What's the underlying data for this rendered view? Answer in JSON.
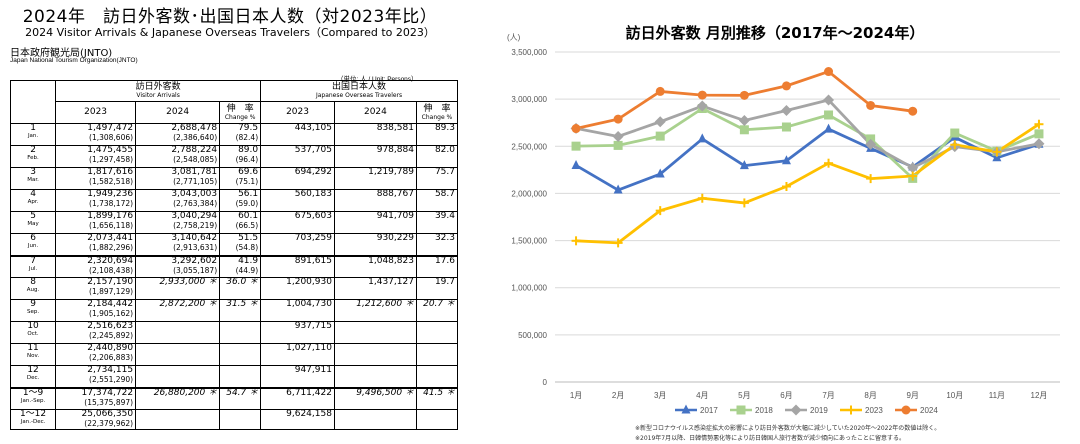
{
  "table": {
    "title": "2024年　訪日外客数･出国日本人数（対2023年比）",
    "subtitle": "2024  Visitor Arrivals & Japanese Overseas Travelers（Compared to 2023）",
    "org": "日本政府観光局(JNTO)",
    "org_en": "Japan National Tourism Organization(JNTO)",
    "unit": "（単位: 人  /  Unit: Persons）",
    "header": {
      "visitor": "訪日外客数",
      "visitor_en": "Visitor  Arrivals",
      "traveler": "出国日本人数",
      "traveler_en": "Japanese  Overseas  Travelers",
      "y2023": "2023",
      "y2024": "2024",
      "change": "伸　率",
      "change_en": "Change %"
    },
    "rows": [
      {
        "m": "1",
        "me": "Jan.",
        "v23": "1,497,472",
        "v23p": "(1,308,606)",
        "v24": "2,688,478",
        "v24p": "(2,386,640)",
        "vc": "79.5",
        "vcp": "(82.4)",
        "j23": "443,105",
        "j24": "838,581",
        "jc": "89.3"
      },
      {
        "m": "2",
        "me": "Feb.",
        "v23": "1,475,455",
        "v23p": "(1,297,458)",
        "v24": "2,788,224",
        "v24p": "(2,548,085)",
        "vc": "89.0",
        "vcp": "(96.4)",
        "j23": "537,705",
        "j24": "978,884",
        "jc": "82.0"
      },
      {
        "m": "3",
        "me": "Mar.",
        "v23": "1,817,616",
        "v23p": "(1,582,518)",
        "v24": "3,081,781",
        "v24p": "(2,771,105)",
        "vc": "69.6",
        "vcp": "(75.1)",
        "j23": "694,292",
        "j24": "1,219,789",
        "jc": "75.7"
      },
      {
        "m": "4",
        "me": "Apr.",
        "v23": "1,949,236",
        "v23p": "(1,738,172)",
        "v24": "3,043,003",
        "v24p": "(2,763,384)",
        "vc": "56.1",
        "vcp": "(59.0)",
        "j23": "560,183",
        "j24": "888,767",
        "jc": "58.7"
      },
      {
        "m": "5",
        "me": "May",
        "v23": "1,899,176",
        "v23p": "(1,656,118)",
        "v24": "3,040,294",
        "v24p": "(2,758,219)",
        "vc": "60.1",
        "vcp": "(66.5)",
        "j23": "675,603",
        "j24": "941,709",
        "jc": "39.4"
      },
      {
        "m": "6",
        "me": "Jun.",
        "v23": "2,073,441",
        "v23p": "(1,882,296)",
        "v24": "3,140,642",
        "v24p": "(2,913,631)",
        "vc": "51.5",
        "vcp": "(54.8)",
        "j23": "703,259",
        "j24": "930,229",
        "jc": "32.3"
      },
      {
        "m": "7",
        "me": "Jul.",
        "v23": "2,320,694",
        "v23p": "(2,108,438)",
        "v24": "3,292,602",
        "v24p": "(3,055,187)",
        "vc": "41.9",
        "vcp": "(44.9)",
        "j23": "891,615",
        "j24": "1,048,823",
        "jc": "17.6"
      },
      {
        "m": "8",
        "me": "Aug.",
        "v23": "2,157,190",
        "v23p": "(1,897,129)",
        "v24": "2,933,000 ＊",
        "v24p": "",
        "vc": "36.0 ＊",
        "vcp": "",
        "j23": "1,200,930",
        "j24": "1,437,127",
        "jc": "19.7"
      },
      {
        "m": "9",
        "me": "Sep.",
        "v23": "2,184,442",
        "v23p": "(1,905,162)",
        "v24": "2,872,200 ＊",
        "v24p": "",
        "vc": "31.5 ＊",
        "vcp": "",
        "j23": "1,004,730",
        "j24": "1,212,600 ＊",
        "jc": "20.7 ＊"
      },
      {
        "m": "10",
        "me": "Oct.",
        "v23": "2,516,623",
        "v23p": "(2,245,892)",
        "v24": "",
        "v24p": "",
        "vc": "",
        "vcp": "",
        "j23": "937,715",
        "j24": "",
        "jc": ""
      },
      {
        "m": "11",
        "me": "Nov.",
        "v23": "2,440,890",
        "v23p": "(2,206,883)",
        "v24": "",
        "v24p": "",
        "vc": "",
        "vcp": "",
        "j23": "1,027,110",
        "j24": "",
        "jc": ""
      },
      {
        "m": "12",
        "me": "Dec.",
        "v23": "2,734,115",
        "v23p": "(2,551,290)",
        "v24": "",
        "v24p": "",
        "vc": "",
        "vcp": "",
        "j23": "947,911",
        "j24": "",
        "jc": ""
      },
      {
        "m": "1～9",
        "me": "Jan.-Sep.",
        "v23": "17,374,722",
        "v23p": "(15,375,897)",
        "v24": "26,880,200 ＊",
        "v24p": "",
        "vc": "54.7 ＊",
        "vcp": "",
        "j23": "6,711,422",
        "j24": "9,496,500 ＊",
        "jc": "41.5 ＊"
      },
      {
        "m": "1～12",
        "me": "Jan.-Dec.",
        "v23": "25,066,350",
        "v23p": "(22,379,962)",
        "v24": "",
        "v24p": "",
        "vc": "",
        "vcp": "",
        "j23": "9,624,158",
        "j24": "",
        "jc": ""
      }
    ]
  },
  "chart_data": {
    "type": "line",
    "title": "訪日外客数 月別推移（2017年～2024年）",
    "ylabel": "(人)",
    "ylim": [
      0,
      3500000
    ],
    "yticks": [
      "0",
      "500,000",
      "1,000,000",
      "1,500,000",
      "2,000,000",
      "2,500,000",
      "3,000,000",
      "3,500,000"
    ],
    "categories": [
      "1月",
      "2月",
      "3月",
      "4月",
      "5月",
      "6月",
      "7月",
      "8月",
      "9月",
      "10月",
      "11月",
      "12月"
    ],
    "series": [
      {
        "name": "2017",
        "color": "#4472C4",
        "marker": "triangle",
        "values": [
          2296451,
          2035800,
          2205731,
          2578021,
          2294707,
          2346439,
          2682477,
          2478215,
          2280052,
          2595197,
          2377920,
          2521401
        ]
      },
      {
        "name": "2018",
        "color": "#A9D18E",
        "marker": "square",
        "values": [
          2501409,
          2509297,
          2607956,
          2900718,
          2675052,
          2704631,
          2832040,
          2578117,
          2159600,
          2640630,
          2447983,
          2632000
        ]
      },
      {
        "name": "2019",
        "color": "#A5A5A5",
        "marker": "diamond",
        "values": [
          2689339,
          2604322,
          2760136,
          2926685,
          2773091,
          2880041,
          2991189,
          2520134,
          2272883,
          2496568,
          2441274,
          2526387
        ]
      },
      {
        "name": "2023",
        "color": "#FFC000",
        "marker": "cross",
        "values": [
          1497472,
          1475455,
          1817616,
          1949236,
          1899176,
          2073441,
          2320694,
          2157190,
          2184442,
          2516623,
          2440890,
          2734115
        ]
      },
      {
        "name": "2024",
        "color": "#ED7D31",
        "marker": "circle",
        "values": [
          2688478,
          2788224,
          3081781,
          3043003,
          3040294,
          3140642,
          3292602,
          2933000,
          2872200,
          null,
          null,
          null
        ]
      }
    ],
    "notes": [
      "※新型コロナウイルス感染症拡大の影響により訪日外客数が大幅に減少していた2020年～2022年の数値は除く。",
      "※2019年7月以降、日韓情勢悪化等により訪日韓国人旅行者数が減少傾向にあったことに留意する。"
    ]
  }
}
